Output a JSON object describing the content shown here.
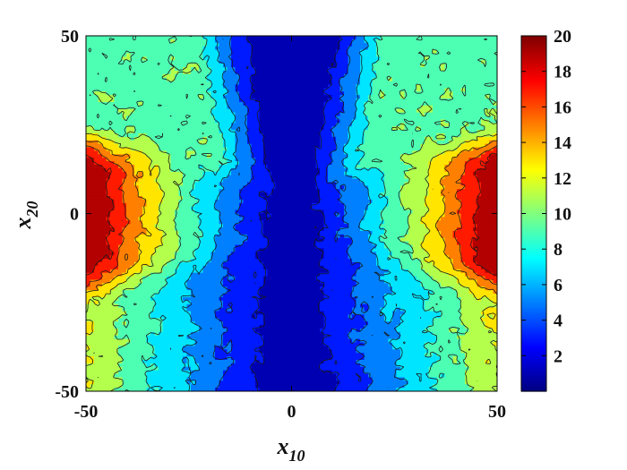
{
  "chart_data": {
    "type": "heatmap",
    "plot": "filled-contour",
    "title": "",
    "xlabel": {
      "base": "x",
      "sub": "10"
    },
    "ylabel": {
      "base": "x",
      "sub": "20"
    },
    "xlim": [
      -50,
      50
    ],
    "ylim": [
      -50,
      50
    ],
    "xticks": [
      "-50",
      "0",
      "50"
    ],
    "yticks": [
      "-50",
      "0",
      "50"
    ],
    "colorbar": {
      "limits": [
        0,
        20
      ],
      "colormap": "jet",
      "ticks": [
        "2",
        "4",
        "6",
        "8",
        "10",
        "12",
        "14",
        "16",
        "18",
        "20"
      ]
    },
    "contour_levels": [
      2,
      4,
      6,
      8,
      10,
      12,
      14,
      16,
      18
    ],
    "pattern": "values lowest (below 2) in a vertical band around x10 = 0, widening toward x20 = -50; values highest (about 18-20) along the left and right edges near x20 = 0 within a bow-tie region bounded by |x20| < 20; values about 6-10 in the upper corners and lower flanks",
    "grid": false
  }
}
